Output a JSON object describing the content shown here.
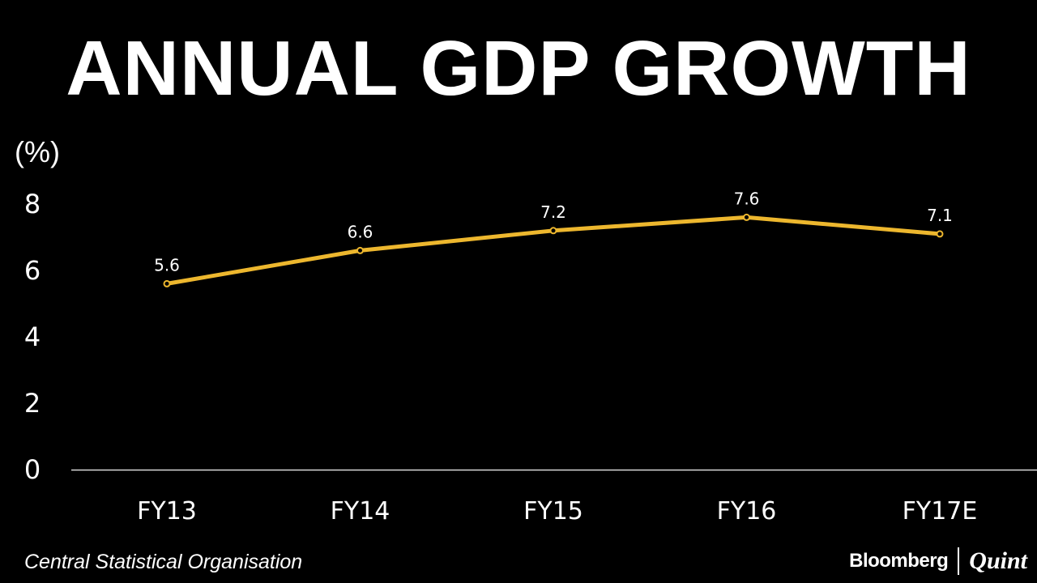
{
  "header": {
    "title": "ANNUAL GDP GROWTH",
    "unit_label": "(%)"
  },
  "footer": {
    "source": "Central Statistical Organisation",
    "brand_primary": "Bloomberg",
    "brand_secondary": "Quint"
  },
  "colors": {
    "background": "#000000",
    "line": "#EDB72E",
    "text": "#FFFFFF"
  },
  "chart_data": {
    "type": "line",
    "title": "ANNUAL GDP GROWTH",
    "ylabel": "(%)",
    "xlabel": "",
    "categories": [
      "FY13",
      "FY14",
      "FY15",
      "FY16",
      "FY17E"
    ],
    "series": [
      {
        "name": "Annual GDP growth",
        "values": [
          5.6,
          6.6,
          7.2,
          7.6,
          7.1
        ],
        "data_labels": [
          "5.6",
          "6.6",
          "7.2",
          "7.6",
          "7.1"
        ]
      }
    ],
    "ylim": [
      0,
      8
    ],
    "yticks": [
      0,
      2,
      4,
      6,
      8
    ],
    "ytick_labels": [
      "0",
      "2",
      "4",
      "6",
      "8"
    ],
    "grid": false
  }
}
